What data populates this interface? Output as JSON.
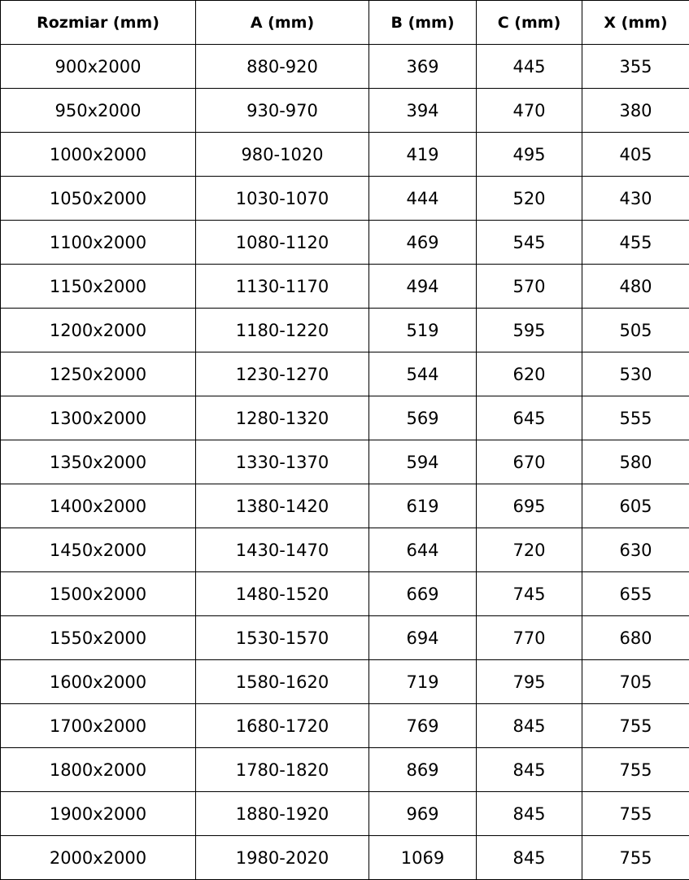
{
  "headers": [
    "Rozmiar (mm)",
    "A (mm)",
    "B (mm)",
    "C (mm)",
    "X (mm)"
  ],
  "rows": [
    [
      "900x2000",
      "880-920",
      "369",
      "445",
      "355"
    ],
    [
      "950x2000",
      "930-970",
      "394",
      "470",
      "380"
    ],
    [
      "1000x2000",
      "980-1020",
      "419",
      "495",
      "405"
    ],
    [
      "1050x2000",
      "1030-1070",
      "444",
      "520",
      "430"
    ],
    [
      "1100x2000",
      "1080-1120",
      "469",
      "545",
      "455"
    ],
    [
      "1150x2000",
      "1130-1170",
      "494",
      "570",
      "480"
    ],
    [
      "1200x2000",
      "1180-1220",
      "519",
      "595",
      "505"
    ],
    [
      "1250x2000",
      "1230-1270",
      "544",
      "620",
      "530"
    ],
    [
      "1300x2000",
      "1280-1320",
      "569",
      "645",
      "555"
    ],
    [
      "1350x2000",
      "1330-1370",
      "594",
      "670",
      "580"
    ],
    [
      "1400x2000",
      "1380-1420",
      "619",
      "695",
      "605"
    ],
    [
      "1450x2000",
      "1430-1470",
      "644",
      "720",
      "630"
    ],
    [
      "1500x2000",
      "1480-1520",
      "669",
      "745",
      "655"
    ],
    [
      "1550x2000",
      "1530-1570",
      "694",
      "770",
      "680"
    ],
    [
      "1600x2000",
      "1580-1620",
      "719",
      "795",
      "705"
    ],
    [
      "1700x2000",
      "1680-1720",
      "769",
      "845",
      "755"
    ],
    [
      "1800x2000",
      "1780-1820",
      "869",
      "845",
      "755"
    ],
    [
      "1900x2000",
      "1880-1920",
      "969",
      "845",
      "755"
    ],
    [
      "2000x2000",
      "1980-2020",
      "1069",
      "845",
      "755"
    ]
  ]
}
